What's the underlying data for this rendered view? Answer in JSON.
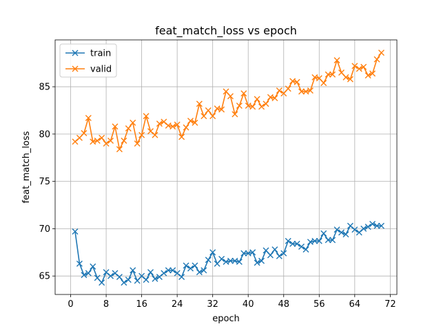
{
  "chart_data": {
    "type": "line",
    "title": "feat_match_loss vs epoch",
    "xlabel": "epoch",
    "ylabel": "feat_match_loss",
    "xlim": [
      -3.5,
      73.5
    ],
    "ylim": [
      63.05,
      89.95
    ],
    "xticks": [
      0,
      8,
      16,
      24,
      32,
      40,
      48,
      56,
      64,
      72
    ],
    "yticks": [
      65,
      70,
      75,
      80,
      85
    ],
    "grid": true,
    "legend_position": "top-left",
    "marker": "x",
    "x": [
      1,
      2,
      3,
      4,
      5,
      6,
      7,
      8,
      9,
      10,
      11,
      12,
      13,
      14,
      15,
      16,
      17,
      18,
      19,
      20,
      21,
      22,
      23,
      24,
      25,
      26,
      27,
      28,
      29,
      30,
      31,
      32,
      33,
      34,
      35,
      36,
      37,
      38,
      39,
      40,
      41,
      42,
      43,
      44,
      45,
      46,
      47,
      48,
      49,
      50,
      51,
      52,
      53,
      54,
      55,
      56,
      57,
      58,
      59,
      60,
      61,
      62,
      63,
      64,
      65,
      66,
      67,
      68,
      69,
      70
    ],
    "series": [
      {
        "name": "train",
        "color": "#1f77b4",
        "values": [
          69.7,
          66.3,
          65.1,
          65.3,
          66.0,
          64.8,
          64.3,
          65.4,
          65.0,
          65.3,
          64.9,
          64.3,
          64.6,
          65.6,
          64.5,
          65.0,
          64.6,
          65.4,
          64.7,
          64.9,
          65.3,
          65.6,
          65.6,
          65.3,
          64.9,
          66.1,
          65.8,
          66.1,
          65.4,
          65.6,
          66.7,
          67.5,
          66.3,
          66.8,
          66.5,
          66.6,
          66.6,
          66.5,
          67.4,
          67.4,
          67.5,
          66.4,
          66.6,
          67.7,
          67.2,
          67.8,
          67.1,
          67.4,
          68.7,
          68.4,
          68.4,
          68.1,
          67.8,
          68.6,
          68.7,
          68.7,
          69.5,
          68.8,
          68.8,
          69.9,
          69.6,
          69.4,
          70.3,
          69.9,
          69.6,
          70.0,
          70.2,
          70.5,
          70.3,
          70.3
        ]
      },
      {
        "name": "valid",
        "color": "#ff7f0e",
        "values": [
          79.2,
          79.6,
          80.1,
          81.7,
          79.2,
          79.3,
          79.6,
          79.0,
          79.3,
          80.8,
          78.4,
          79.3,
          80.6,
          81.2,
          79.0,
          79.9,
          81.9,
          80.3,
          79.9,
          81.1,
          81.3,
          80.9,
          80.8,
          81.0,
          79.7,
          80.7,
          81.4,
          81.2,
          83.2,
          81.9,
          82.5,
          81.9,
          82.7,
          82.6,
          84.5,
          84.0,
          82.1,
          83.0,
          84.3,
          83.0,
          82.9,
          83.7,
          82.9,
          83.2,
          83.9,
          83.8,
          84.6,
          84.3,
          84.8,
          85.6,
          85.5,
          84.5,
          84.5,
          84.6,
          86.0,
          85.9,
          85.4,
          86.3,
          86.3,
          87.8,
          86.5,
          86.0,
          85.8,
          87.2,
          86.9,
          87.1,
          86.2,
          86.4,
          87.9,
          88.6
        ]
      }
    ]
  }
}
